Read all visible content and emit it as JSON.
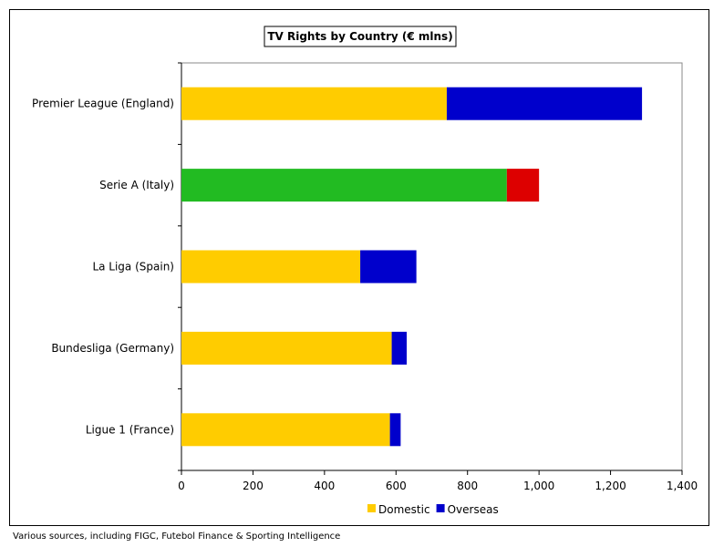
{
  "chart_data": {
    "type": "bar",
    "orientation": "horizontal",
    "stacked": true,
    "title": "TV Rights by Country (€ mlns)",
    "categories": [
      "Premier League (England)",
      "Serie A (Italy)",
      "La Liga (Spain)",
      "Bundesliga (Germany)",
      "Ligue 1 (France)"
    ],
    "series": [
      {
        "name": "Domestic",
        "values": [
          742,
          910,
          500,
          588,
          583
        ],
        "colors": [
          "#FFCC00",
          "#22BB22",
          "#FFCC00",
          "#FFCC00",
          "#FFCC00"
        ]
      },
      {
        "name": "Overseas",
        "values": [
          546,
          90,
          157,
          42,
          30
        ],
        "colors": [
          "#0000CC",
          "#DD0000",
          "#0000CC",
          "#0000CC",
          "#0000CC"
        ]
      }
    ],
    "xlim": [
      0,
      1400
    ],
    "xticks": [
      0,
      200,
      400,
      600,
      800,
      1000,
      1200,
      1400
    ],
    "xtick_labels": [
      "0",
      "200",
      "400",
      "600",
      "800",
      "1,000",
      "1,200",
      "1,400"
    ],
    "legend": {
      "position": "bottom",
      "items": [
        {
          "label": "Domestic",
          "color": "#FFCC00"
        },
        {
          "label": "Overseas",
          "color": "#0000CC"
        }
      ]
    },
    "grid": false,
    "plot_background": "#FFFFFF"
  },
  "source_note": "Various sources, including FIGC, Futebol Finance & Sporting Intelligence"
}
